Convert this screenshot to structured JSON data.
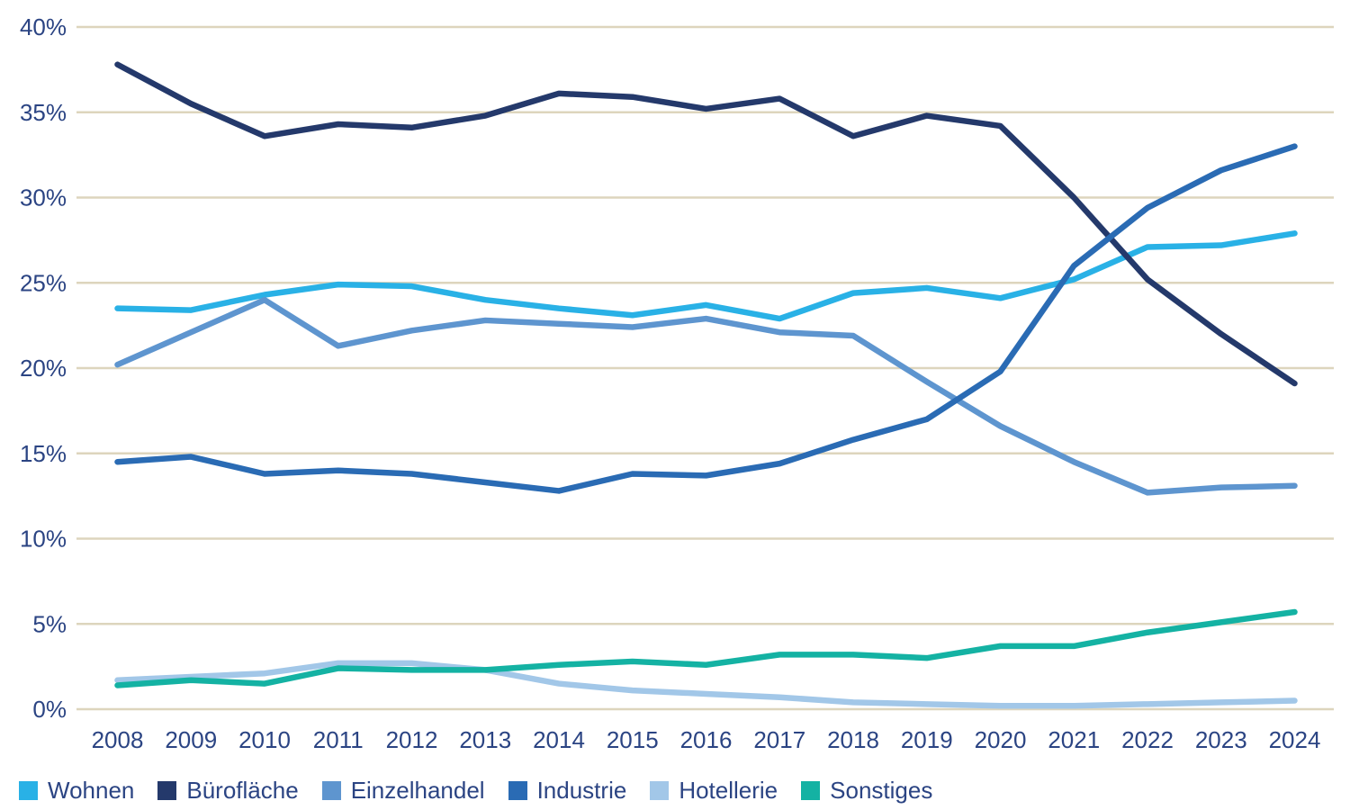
{
  "chart_data": {
    "type": "line",
    "title": "",
    "grid": "horizontal-only",
    "legend_position": "bottom",
    "x_labels": [
      "2008",
      "2009",
      "2010",
      "2011",
      "2012",
      "2013",
      "2014",
      "2015",
      "2016",
      "2017",
      "2018",
      "2019",
      "2020",
      "2021",
      "2022",
      "2023",
      "2024"
    ],
    "y_axis": {
      "min": 0,
      "max": 40,
      "tick_step": 5,
      "unit": "%"
    },
    "series": [
      {
        "name": "Wohnen",
        "color": "#29b1e6",
        "values": [
          23.5,
          23.4,
          24.3,
          24.9,
          24.8,
          24.0,
          23.5,
          23.1,
          23.7,
          22.9,
          24.4,
          24.7,
          24.1,
          25.2,
          27.1,
          27.2,
          27.9
        ]
      },
      {
        "name": "Bürofläche",
        "color": "#24396b",
        "values": [
          37.8,
          35.5,
          33.6,
          34.3,
          34.1,
          34.8,
          36.1,
          35.9,
          35.2,
          35.8,
          33.6,
          34.8,
          34.2,
          30.0,
          25.2,
          22.0,
          19.1
        ]
      },
      {
        "name": "Einzelhandel",
        "color": "#5e95cf",
        "values": [
          20.2,
          22.1,
          24.0,
          21.3,
          22.2,
          22.8,
          22.6,
          22.4,
          22.9,
          22.1,
          21.9,
          19.2,
          16.6,
          14.5,
          12.7,
          13.0,
          13.1
        ]
      },
      {
        "name": "Industrie",
        "color": "#2a6bb4",
        "values": [
          14.5,
          14.8,
          13.8,
          14.0,
          13.8,
          13.3,
          12.8,
          13.8,
          13.7,
          14.4,
          15.8,
          17.0,
          19.8,
          26.0,
          29.4,
          31.6,
          33.0
        ]
      },
      {
        "name": "Hotellerie",
        "color": "#a2c7e8",
        "values": [
          1.7,
          1.9,
          2.1,
          2.7,
          2.7,
          2.3,
          1.5,
          1.1,
          0.9,
          0.7,
          0.4,
          0.3,
          0.2,
          0.2,
          0.3,
          0.4,
          0.5
        ]
      },
      {
        "name": "Sonstiges",
        "color": "#14b2a3",
        "values": [
          1.4,
          1.7,
          1.5,
          2.4,
          2.3,
          2.3,
          2.6,
          2.8,
          2.6,
          3.2,
          3.2,
          3.0,
          3.7,
          3.7,
          4.5,
          5.1,
          5.7
        ]
      }
    ]
  },
  "axis": {
    "y_tick_labels": [
      "0%",
      "5%",
      "10%",
      "15%",
      "20%",
      "25%",
      "30%",
      "35%",
      "40%"
    ],
    "x_tick_labels": [
      "2008",
      "2009",
      "2010",
      "2011",
      "2012",
      "2013",
      "2014",
      "2015",
      "2016",
      "2017",
      "2018",
      "2019",
      "2020",
      "2021",
      "2022",
      "2023",
      "2024"
    ]
  },
  "legend": {
    "items": [
      {
        "label": "Wohnen",
        "color": "#29b1e6"
      },
      {
        "label": "Bürofläche",
        "color": "#24396b"
      },
      {
        "label": "Einzelhandel",
        "color": "#5e95cf"
      },
      {
        "label": "Industrie",
        "color": "#2a6bb4"
      },
      {
        "label": "Hotellerie",
        "color": "#a2c7e8"
      },
      {
        "label": "Sonstiges",
        "color": "#14b2a3"
      }
    ]
  },
  "colors": {
    "background": "#ffffff",
    "grid": "#ddd5bd",
    "axis_text": "#2b4483"
  }
}
